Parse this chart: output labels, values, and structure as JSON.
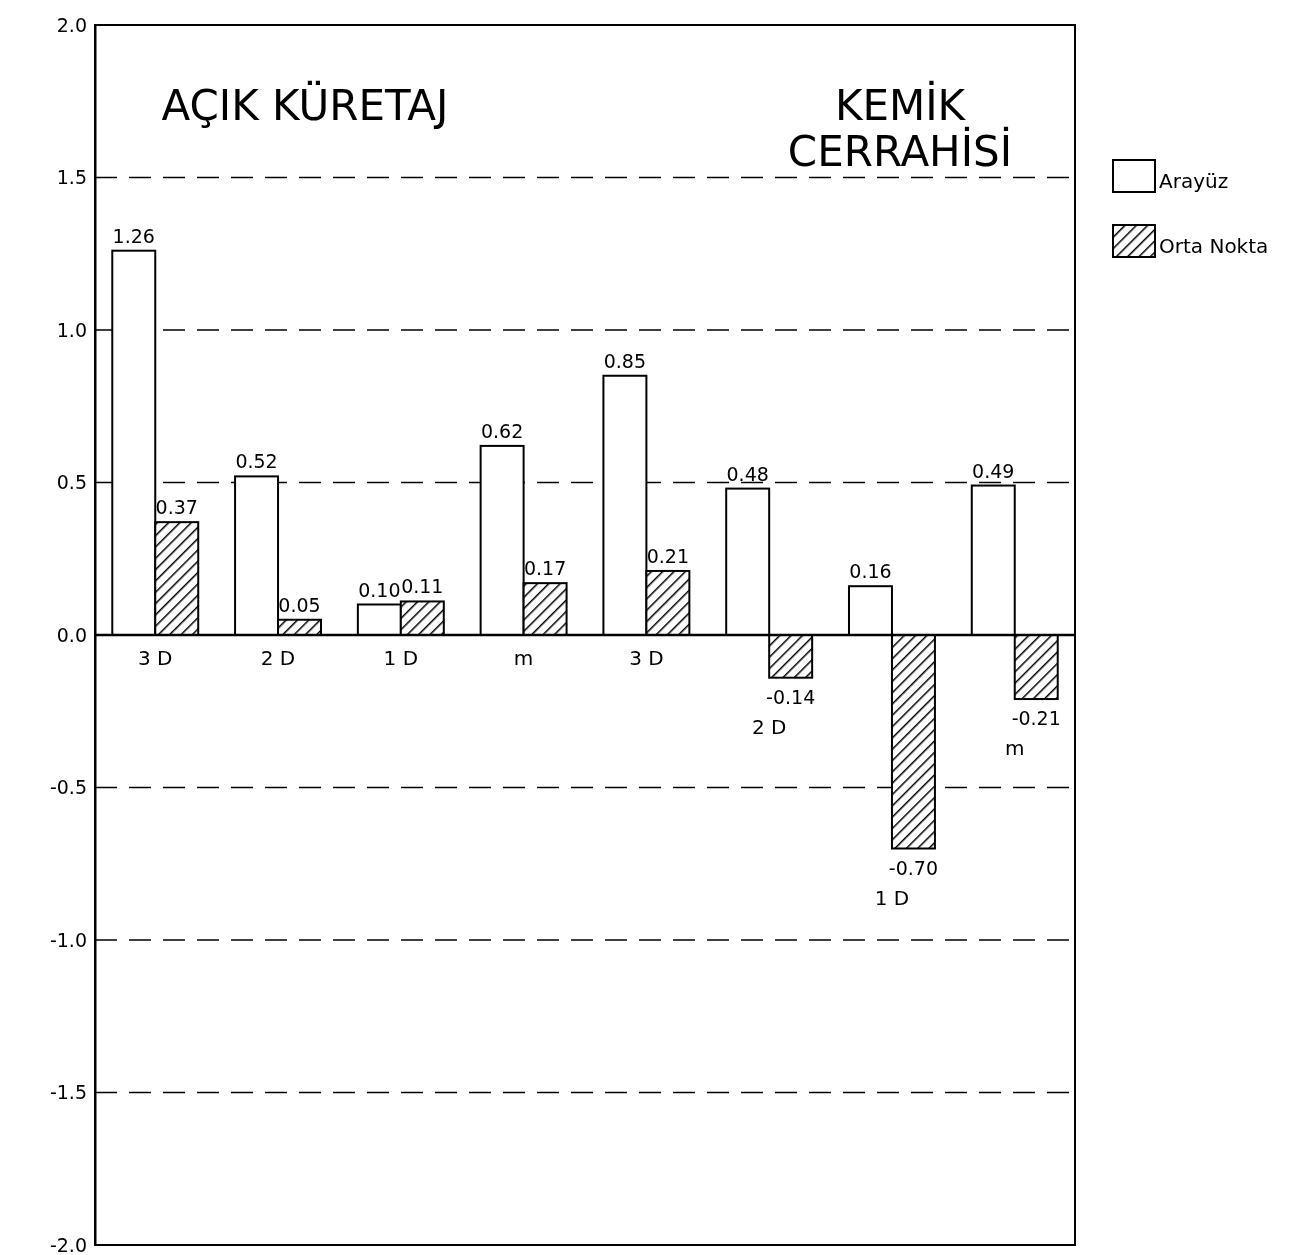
{
  "chart_data": {
    "type": "bar",
    "categories": [
      "3 D",
      "2 D",
      "1 D",
      "m",
      "3 D",
      "2 D",
      "1 D",
      "m"
    ],
    "series": [
      {
        "name": "Arayüz",
        "color": "#ffffff",
        "values": [
          1.26,
          0.52,
          0.1,
          0.62,
          0.85,
          0.48,
          0.16,
          0.49
        ],
        "value_labels": [
          "1.26",
          "0.52",
          "0.10",
          "0.62",
          "0.85",
          "0.48",
          "0.16",
          "0.49"
        ]
      },
      {
        "name": "Orta Nokta",
        "color": "#000000",
        "values": [
          0.37,
          0.05,
          0.11,
          0.17,
          0.21,
          -0.14,
          -0.7,
          -0.21
        ],
        "value_labels": [
          "0.37",
          "0.05",
          "0.11",
          "0.17",
          "0.21",
          "-0.14",
          "-0.70",
          "-0.21"
        ]
      }
    ],
    "ylim": [
      -2,
      2
    ],
    "yticks": [
      {
        "value": 2,
        "label": "2.0"
      },
      1.5,
      {
        "value": 1,
        "label": "1.0"
      },
      0.5,
      {
        "value": 0,
        "label": "0.0"
      },
      {
        "value": -0.5,
        "label": "-0.5"
      },
      {
        "value": -1,
        "label": "-1.0"
      },
      {
        "value": -1.5,
        "label": "-1.5"
      },
      {
        "value": -2,
        "label": "-2.0"
      }
    ],
    "grid": "y",
    "legend": "top right",
    "annotations": [
      "AÇIK KÜRETAJ",
      "KEMİK CERRAHİSİ"
    ]
  }
}
